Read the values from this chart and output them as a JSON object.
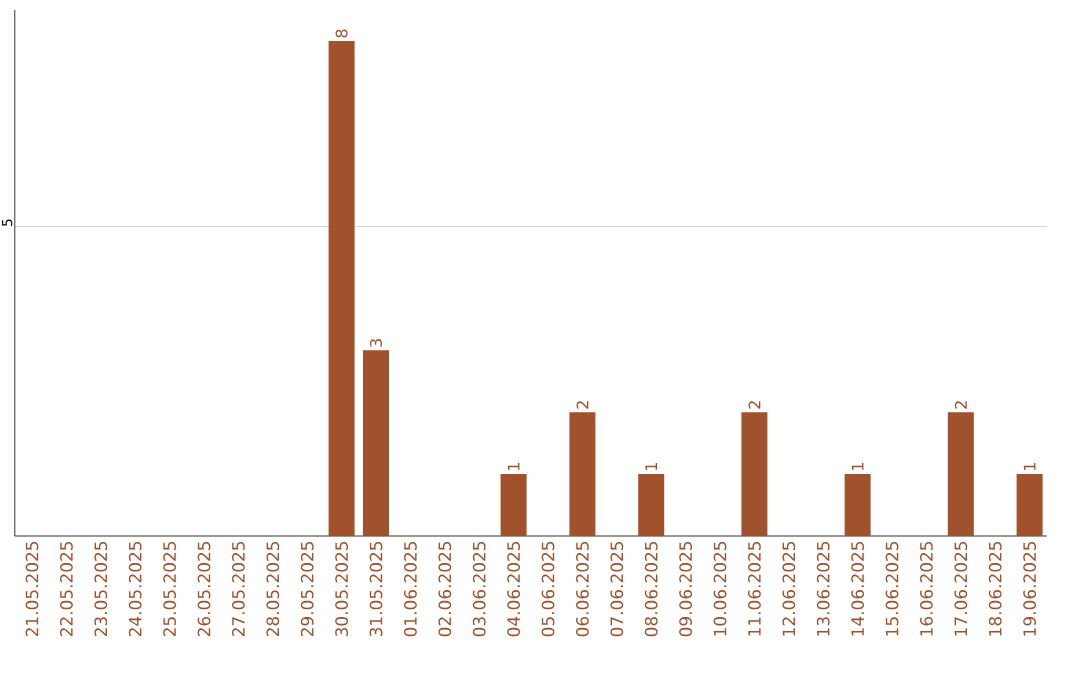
{
  "chart_data": {
    "type": "bar",
    "categories": [
      "21.05.2025",
      "22.05.2025",
      "23.05.2025",
      "24.05.2025",
      "25.05.2025",
      "26.05.2025",
      "27.05.2025",
      "28.05.2025",
      "29.05.2025",
      "30.05.2025",
      "31.05.2025",
      "01.06.2025",
      "02.06.2025",
      "03.06.2025",
      "04.06.2025",
      "05.06.2025",
      "06.06.2025",
      "07.06.2025",
      "08.06.2025",
      "09.06.2025",
      "10.06.2025",
      "11.06.2025",
      "12.06.2025",
      "13.06.2025",
      "14.06.2025",
      "15.06.2025",
      "16.06.2025",
      "17.06.2025",
      "18.06.2025",
      "19.06.2025"
    ],
    "values": [
      0,
      0,
      0,
      0,
      0,
      0,
      0,
      0,
      0,
      8,
      3,
      0,
      0,
      0,
      1,
      0,
      2,
      0,
      1,
      0,
      0,
      2,
      0,
      0,
      1,
      0,
      0,
      2,
      0,
      1
    ],
    "value_labels": [
      null,
      null,
      null,
      null,
      null,
      null,
      null,
      null,
      null,
      "8",
      "3",
      null,
      null,
      null,
      "1",
      null,
      "2",
      null,
      "1",
      null,
      null,
      "2",
      null,
      null,
      "1",
      null,
      null,
      "2",
      null,
      "1"
    ],
    "color": "#a0522d",
    "ylim": [
      0,
      8.5
    ],
    "yticks": [
      5
    ],
    "grid": "y"
  }
}
